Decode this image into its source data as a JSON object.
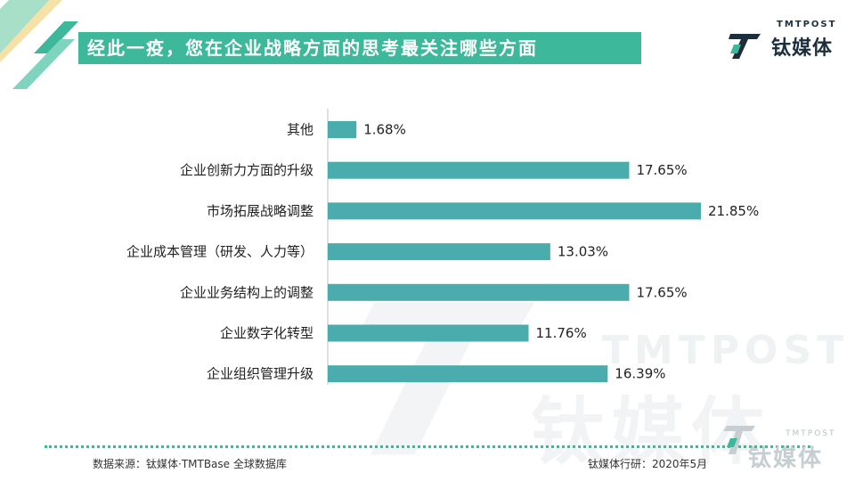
{
  "title": "经此一疫，您在企业战略方面的思考最关注哪些方面",
  "logo": {
    "en": "TMTPOST",
    "cn": "钛媒体"
  },
  "watermark": {
    "en": "TMTPOST",
    "cn": "钛媒体"
  },
  "footer": {
    "source": "数据来源：钛媒体·TMTBase 全球数据库",
    "credit": "钛媒体行研：2020年5月"
  },
  "colors": {
    "bar": "#4aacac",
    "accent": "#3db89a",
    "deco_light": "#a8dfc9",
    "deco_yellow": "#f6e2a6"
  },
  "chart_data": {
    "type": "bar",
    "orientation": "horizontal",
    "categories": [
      "其他",
      "企业创新力方面的升级",
      "市场拓展战略调整",
      "企业成本管理（研发、人力等）",
      "企业业务结构上的调整",
      "企业数字化转型",
      "企业组织管理升级"
    ],
    "values": [
      1.68,
      17.65,
      21.85,
      13.03,
      17.65,
      11.76,
      16.39
    ],
    "value_labels": [
      "1.68%",
      "17.65%",
      "21.85%",
      "13.03%",
      "17.65%",
      "11.76%",
      "16.39%"
    ],
    "title": "经此一疫，您在企业战略方面的思考最关注哪些方面",
    "xlabel": "",
    "ylabel": "",
    "xlim": [
      0,
      21.85
    ],
    "grid": false,
    "legend": "none"
  }
}
